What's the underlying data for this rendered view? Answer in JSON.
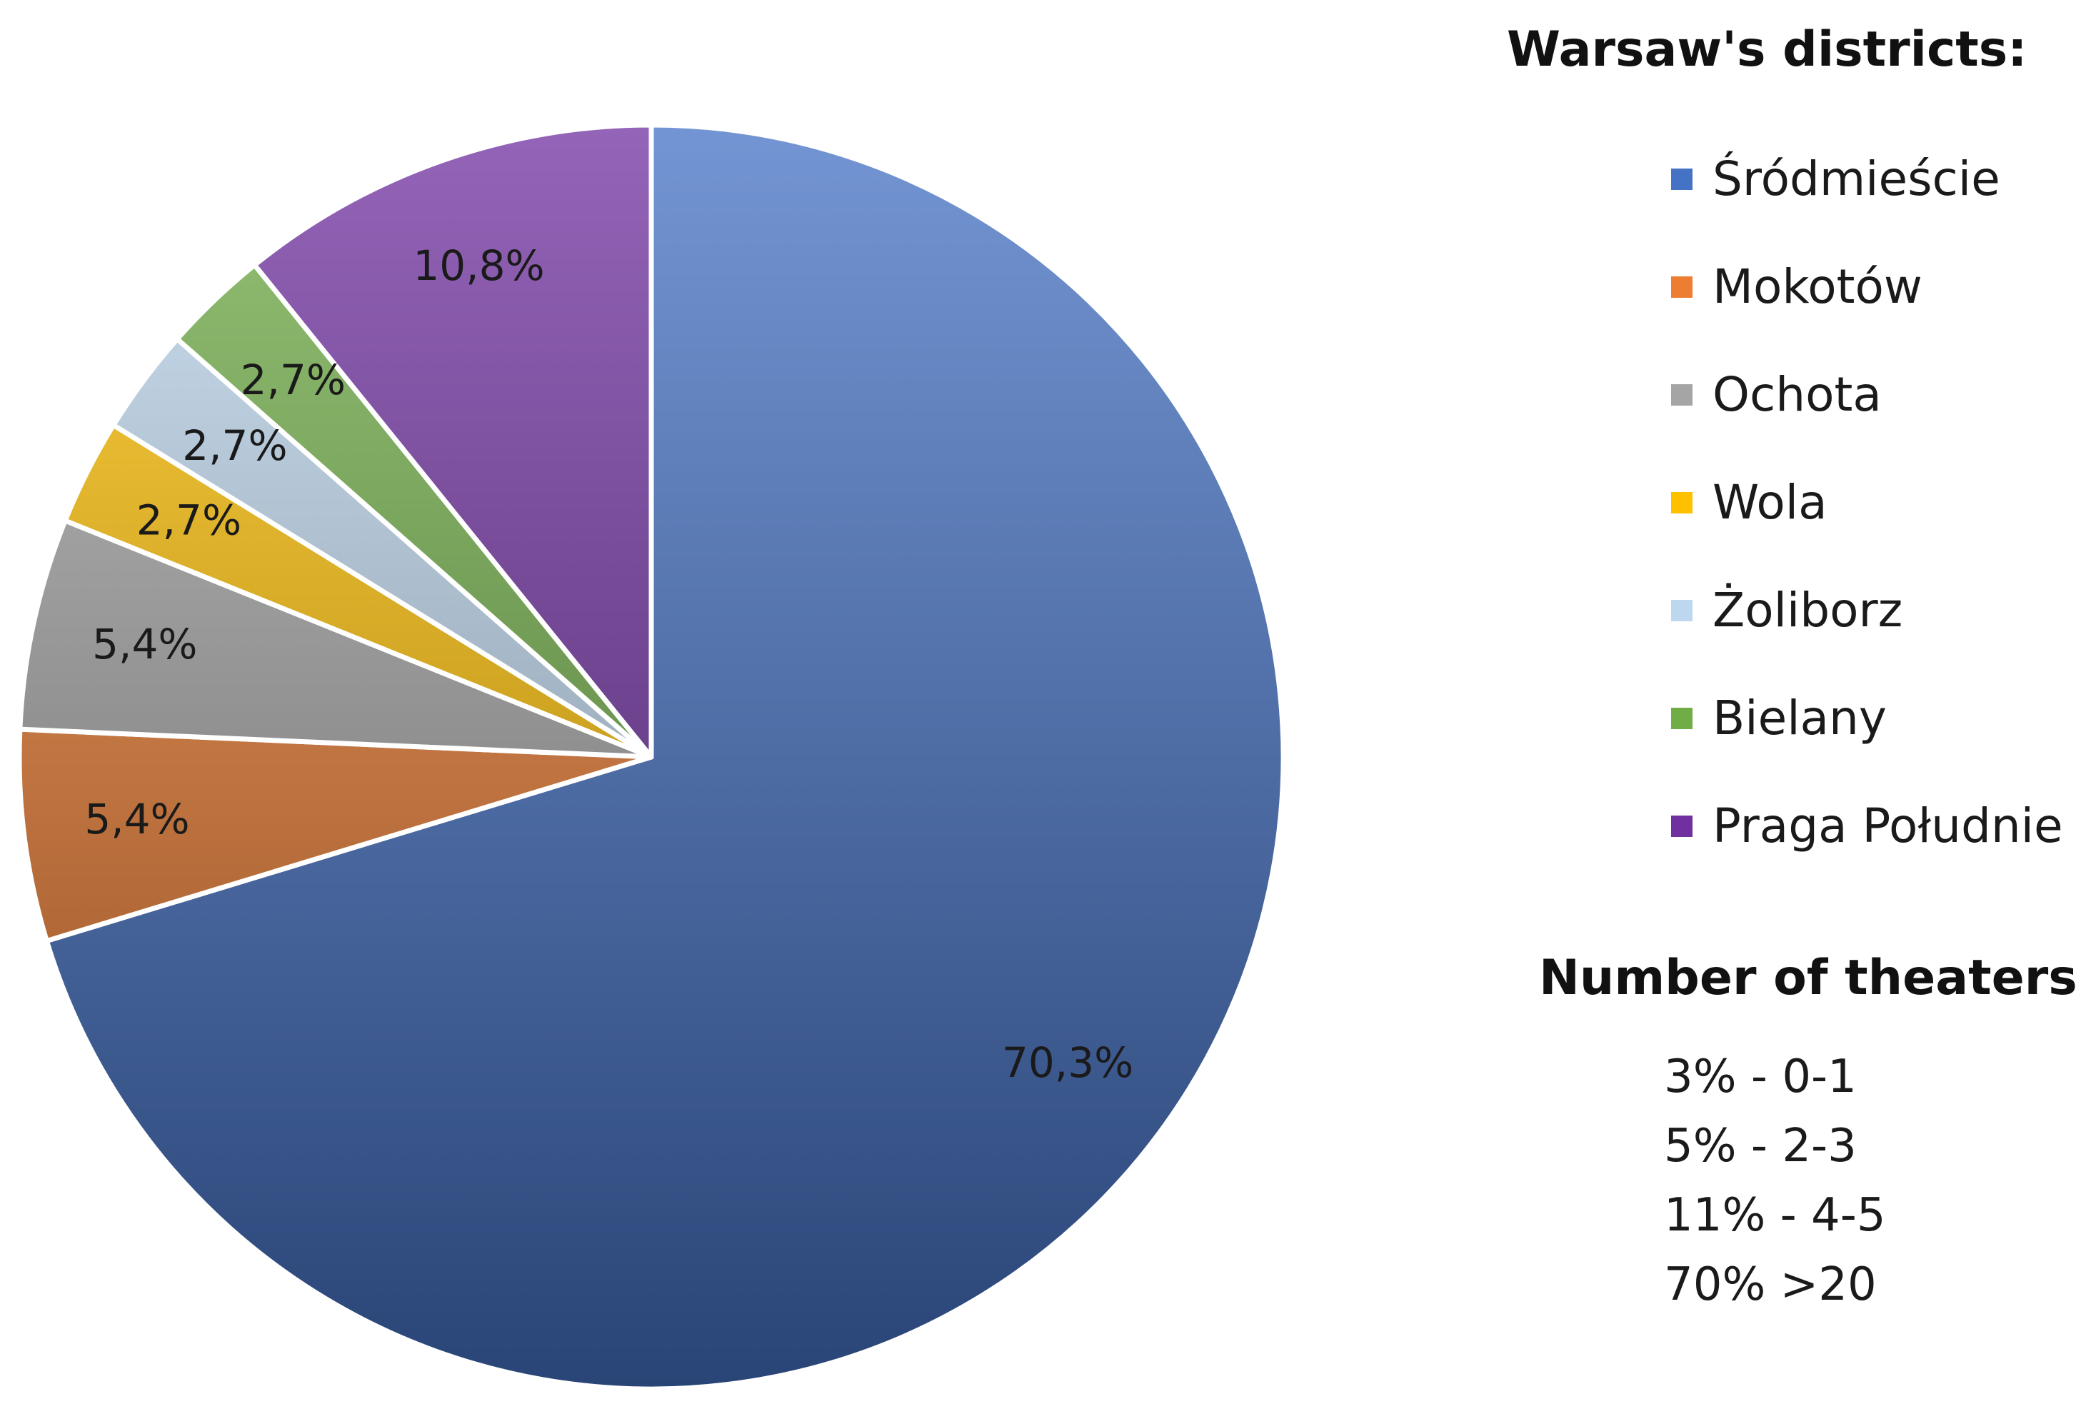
{
  "chart_data": {
    "type": "pie",
    "slices": [
      {
        "name": "Śródmieście",
        "value": 70.3,
        "label": "70,3%",
        "color": "#4472C4"
      },
      {
        "name": "Mokotów",
        "value": 5.4,
        "label": "5,4%",
        "color": "#ED7D31"
      },
      {
        "name": "Ochota",
        "value": 5.4,
        "label": "5,4%",
        "color": "#A5A5A5"
      },
      {
        "name": "Wola",
        "value": 2.7,
        "label": "2,7%",
        "color": "#FFC000"
      },
      {
        "name": "Żoliborz",
        "value": 2.7,
        "label": "2,7%",
        "color": "#BDD7EE"
      },
      {
        "name": "Bielany",
        "value": 2.7,
        "label": "2,7%",
        "color": "#70AD47"
      },
      {
        "name": "Praga Południe",
        "value": 10.8,
        "label": "10,8%",
        "color": "#7030A0"
      }
    ],
    "start_angle_deg": 0,
    "direction": "clockwise",
    "legend_position": "right"
  },
  "legend": {
    "title": "Warsaw's districts:",
    "items": [
      "Śródmieście",
      "Mokotów",
      "Ochota",
      "Wola",
      "Żoliborz",
      "Bielany",
      "Praga Południe"
    ]
  },
  "scale": {
    "title": "Number of theaters:",
    "items": [
      "3% - 0-1",
      "5% - 2-3",
      "11% - 4-5",
      "70% >20"
    ]
  }
}
